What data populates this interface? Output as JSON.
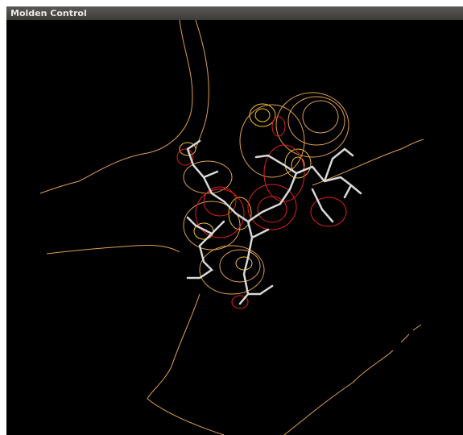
{
  "window": {
    "title": "Molden Control"
  }
}
